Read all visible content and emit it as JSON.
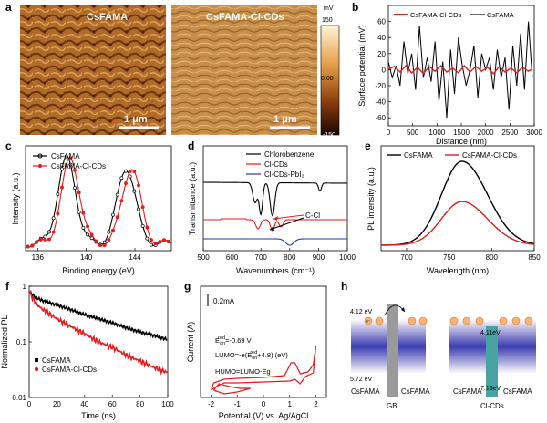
{
  "panel_letters": {
    "a": "a",
    "b": "b",
    "c": "c",
    "d": "d",
    "e": "e",
    "f": "f",
    "g": "g",
    "h": "h"
  },
  "colors": {
    "black": "#000000",
    "red": "#e11d1d",
    "blue": "#1f3aa6",
    "afm_dark": "#5a2a0a",
    "afm_light": "#e8b060",
    "gb": "#9a9a9a",
    "cds": "#4aa3a3"
  },
  "panel_a": {
    "label_left": "CsFAMA",
    "label_right": "CsFAMA-Cl-CDs",
    "scalebar_left": "1 μm",
    "scalebar_right": "1 μm",
    "colorbar_unit": "mV",
    "colorbar_max": "150",
    "colorbar_mid": "0.00",
    "colorbar_min": "-150"
  },
  "chart_data": [
    {
      "panel": "b",
      "type": "line",
      "xlabel": "Distance (nm)",
      "ylabel": "Surface potential (mV)",
      "xlim": [
        0,
        3000
      ],
      "ylim": [
        -70,
        80
      ],
      "xticks": [
        "0",
        "500",
        "1000",
        "1500",
        "2000",
        "2500",
        "3000"
      ],
      "yticks": [
        "-60",
        "-40",
        "-20",
        "0",
        "20",
        "40",
        "60"
      ],
      "series": [
        {
          "name": "CsFAMA-Cl-CDs",
          "color": "#e11d1d",
          "x": [
            0,
            120,
            240,
            360,
            480,
            600,
            720,
            840,
            960,
            1080,
            1200,
            1320,
            1440,
            1560,
            1680,
            1800,
            1920,
            2040,
            2160,
            2280,
            2400,
            2520,
            2640,
            2760,
            2880,
            2960
          ],
          "y": [
            0,
            4,
            -3,
            5,
            -4,
            3,
            -5,
            4,
            -2,
            5,
            -3,
            2,
            -4,
            5,
            -3,
            4,
            -2,
            3,
            -5,
            4,
            -3,
            2,
            -4,
            3,
            -2,
            1
          ]
        },
        {
          "name": "CsFAMA",
          "color": "#000000",
          "x": [
            0,
            80,
            160,
            240,
            320,
            400,
            480,
            560,
            640,
            720,
            800,
            880,
            960,
            1040,
            1120,
            1200,
            1280,
            1360,
            1440,
            1520,
            1600,
            1680,
            1760,
            1840,
            1920,
            2000,
            2080,
            2160,
            2240,
            2320,
            2400,
            2480,
            2560,
            2640,
            2720,
            2800,
            2880,
            2960
          ],
          "y": [
            10,
            -10,
            5,
            -20,
            35,
            -5,
            20,
            -25,
            55,
            -10,
            15,
            -15,
            35,
            -40,
            10,
            -60,
            25,
            -30,
            40,
            5,
            -20,
            0,
            30,
            -35,
            20,
            0,
            15,
            -25,
            25,
            -10,
            15,
            -50,
            30,
            -20,
            45,
            -25,
            60,
            -10
          ]
        }
      ]
    },
    {
      "panel": "c",
      "type": "line",
      "xlabel": "Binding energy (eV)",
      "ylabel": "Intensity (a.u.)",
      "xlim": [
        135,
        147
      ],
      "xticks": [
        "136",
        "140",
        "144"
      ],
      "series": [
        {
          "name": "CsFAMA",
          "color": "#000000",
          "peaks_eV": [
            138.4,
            143.3
          ]
        },
        {
          "name": "CsFAMA-Cl-CDs",
          "color": "#e11d1d",
          "peaks_eV": [
            138.7,
            143.7
          ]
        }
      ]
    },
    {
      "panel": "d",
      "type": "line",
      "xlabel": "Wavenumbers (cm⁻¹)",
      "ylabel": "Transmittance (a.u.)",
      "xlim": [
        500,
        1000
      ],
      "xticks": [
        "500",
        "600",
        "700",
        "800",
        "900",
        "1000"
      ],
      "annotation": "C-Cl",
      "series": [
        {
          "name": "Chlorobenzene",
          "color": "#000000",
          "dips_cm": [
            680,
            700,
            740,
            905
          ]
        },
        {
          "name": "Cl-CDs",
          "color": "#e11d1d",
          "dips_cm": [
            690,
            740,
            770
          ]
        },
        {
          "name": "Cl-CDs-PbI₂",
          "color": "#1f3aa6",
          "dips_cm": [
            800
          ]
        }
      ]
    },
    {
      "panel": "e",
      "type": "line",
      "xlabel": "Wavelength (nm)",
      "ylabel": "PL intensity (a.u.)",
      "xlim": [
        670,
        850
      ],
      "xticks": [
        "700",
        "750",
        "800",
        "850"
      ],
      "series": [
        {
          "name": "CsFAMA",
          "color": "#000000",
          "peak_nm": 765,
          "relative_height": 1.0
        },
        {
          "name": "CsFAMA-Cl-CDs",
          "color": "#e11d1d",
          "peak_nm": 765,
          "relative_height": 0.52
        }
      ]
    },
    {
      "panel": "f",
      "type": "line",
      "yscale": "log",
      "xlabel": "Time (ns)",
      "ylabel": "Normalized PL",
      "xlim": [
        0,
        100
      ],
      "ylim": [
        0.01,
        1
      ],
      "xticks": [
        "0",
        "20",
        "40",
        "60",
        "80",
        "100"
      ],
      "yticks": [
        "0.01",
        "0.1",
        "1"
      ],
      "series": [
        {
          "name": "CsFAMA",
          "color": "#000000",
          "x": [
            0,
            5,
            10,
            20,
            30,
            40,
            50,
            60,
            70,
            80,
            90,
            100
          ],
          "y": [
            0.8,
            0.62,
            0.55,
            0.46,
            0.38,
            0.31,
            0.26,
            0.22,
            0.18,
            0.15,
            0.13,
            0.11
          ]
        },
        {
          "name": "CsFAMA-Cl-CDs",
          "color": "#e11d1d",
          "x": [
            0,
            5,
            10,
            20,
            30,
            40,
            50,
            60,
            70,
            80,
            90,
            100
          ],
          "y": [
            0.8,
            0.48,
            0.38,
            0.26,
            0.19,
            0.14,
            0.1,
            0.08,
            0.058,
            0.045,
            0.035,
            0.028
          ]
        }
      ]
    },
    {
      "panel": "g",
      "type": "line",
      "xlabel": "Potential (V) vs. Ag/AgCl",
      "ylabel": "Current  (A)",
      "xlim": [
        -2.4,
        2.4
      ],
      "xticks": [
        "-2",
        "-1",
        "0",
        "1",
        "2"
      ],
      "scalebar": "0.2mA",
      "equations": [
        "E_on^red=-0.69 V",
        "LUMO=-e(E_on^red+4.8) (eV)",
        "HUMO=LUMO-Eg"
      ]
    }
  ],
  "panel_g_text": {
    "scalebar": "0.2mA",
    "eq1_main": "E",
    "eq1_sub": "on",
    "eq1_sup": "red",
    "eq1_rest": "=-0.69 V",
    "eq2_a": "LUMO=-e(E",
    "eq2_sub": "on",
    "eq2_sup": "red",
    "eq2_b": "+4.8) (eV)",
    "eq3": "HUMO=LUMO-Eg"
  },
  "panel_h": {
    "level_upper_left": "4.12 eV",
    "level_lower_left": "5.72 eV",
    "level_upper_cds": "4.11eV",
    "level_lower_cds": "7.13eV",
    "label_csfama_1": "CsFAMA",
    "label_csfama_2": "CsFAMA",
    "label_csfama_3": "CsFAMA",
    "label_csfama_4": "CsFAMA",
    "label_gb": "GB",
    "label_clcds": "Cl-CDs",
    "electron": "e⁻"
  }
}
